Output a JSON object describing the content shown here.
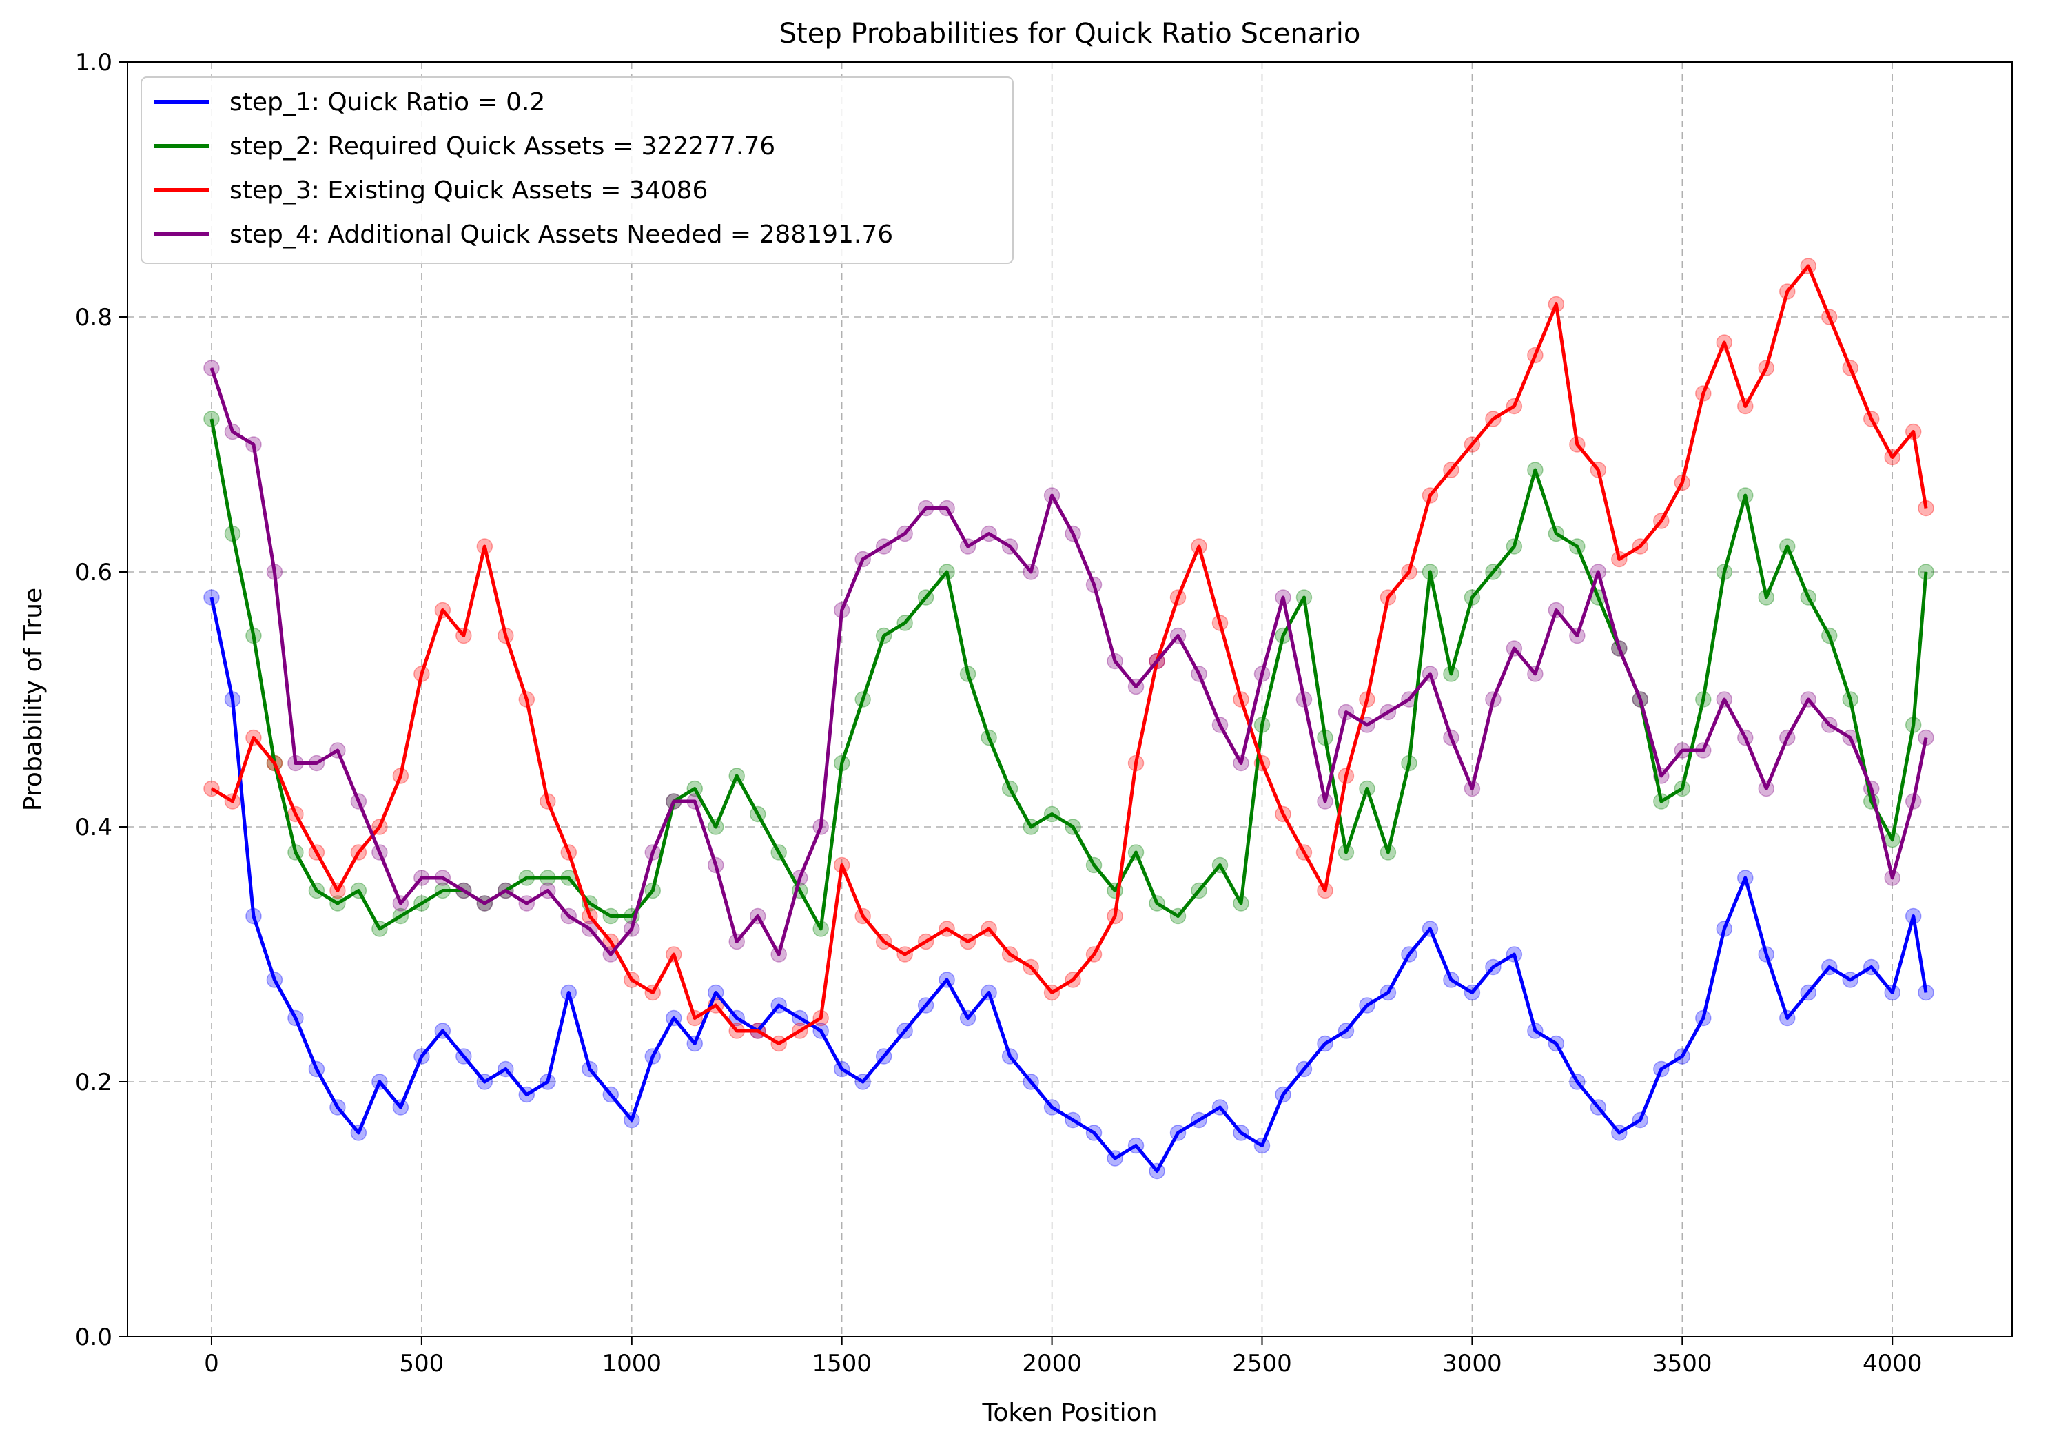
{
  "chart_data": {
    "type": "line",
    "title": "Step Probabilities for Quick Ratio Scenario",
    "xlabel": "Token Position",
    "ylabel": "Probability of True",
    "xlim": [
      -200,
      4285
    ],
    "ylim": [
      0.0,
      1.0
    ],
    "xticks": [
      0,
      500,
      1000,
      1500,
      2000,
      2500,
      3000,
      3500,
      4000
    ],
    "yticks": [
      0.0,
      0.2,
      0.4,
      0.6,
      0.8,
      1.0
    ],
    "xtick_labels": [
      "0",
      "500",
      "1000",
      "1500",
      "2000",
      "2500",
      "3000",
      "3500",
      "4000"
    ],
    "ytick_labels": [
      "0.0",
      "0.2",
      "0.4",
      "0.6",
      "0.8",
      "1.0"
    ],
    "grid": true,
    "legend_position": "upper-left",
    "series": [
      {
        "name": "step_1: Quick Ratio = 0.2",
        "color": "#0000ff",
        "x": [
          0,
          50,
          100,
          150,
          200,
          250,
          300,
          350,
          400,
          450,
          500,
          550,
          600,
          650,
          700,
          750,
          800,
          850,
          900,
          950,
          1000,
          1050,
          1100,
          1150,
          1200,
          1250,
          1300,
          1350,
          1400,
          1450,
          1500,
          1550,
          1600,
          1650,
          1700,
          1750,
          1800,
          1850,
          1900,
          1950,
          2000,
          2050,
          2100,
          2150,
          2200,
          2250,
          2300,
          2350,
          2400,
          2450,
          2500,
          2550,
          2600,
          2650,
          2700,
          2750,
          2800,
          2850,
          2900,
          2950,
          3000,
          3050,
          3100,
          3150,
          3200,
          3250,
          3300,
          3350,
          3400,
          3450,
          3500,
          3550,
          3600,
          3650,
          3700,
          3750,
          3800,
          3850,
          3900,
          3950,
          4000,
          4050,
          4080
        ],
        "y": [
          0.58,
          0.5,
          0.33,
          0.28,
          0.25,
          0.21,
          0.18,
          0.16,
          0.2,
          0.18,
          0.22,
          0.24,
          0.22,
          0.2,
          0.21,
          0.19,
          0.2,
          0.27,
          0.21,
          0.19,
          0.17,
          0.22,
          0.25,
          0.23,
          0.27,
          0.25,
          0.24,
          0.26,
          0.25,
          0.24,
          0.21,
          0.2,
          0.22,
          0.24,
          0.26,
          0.28,
          0.25,
          0.27,
          0.22,
          0.2,
          0.18,
          0.17,
          0.16,
          0.14,
          0.15,
          0.13,
          0.16,
          0.17,
          0.18,
          0.16,
          0.15,
          0.19,
          0.21,
          0.23,
          0.24,
          0.26,
          0.27,
          0.3,
          0.32,
          0.28,
          0.27,
          0.29,
          0.3,
          0.24,
          0.23,
          0.2,
          0.18,
          0.16,
          0.17,
          0.21,
          0.22,
          0.25,
          0.32,
          0.36,
          0.3,
          0.25,
          0.27,
          0.29,
          0.28,
          0.29,
          0.27,
          0.33,
          0.27
        ]
      },
      {
        "name": "step_2: Required Quick Assets = 322277.76",
        "color": "#008000",
        "x": [
          0,
          50,
          100,
          150,
          200,
          250,
          300,
          350,
          400,
          450,
          500,
          550,
          600,
          650,
          700,
          750,
          800,
          850,
          900,
          950,
          1000,
          1050,
          1100,
          1150,
          1200,
          1250,
          1300,
          1350,
          1400,
          1450,
          1500,
          1550,
          1600,
          1650,
          1700,
          1750,
          1800,
          1850,
          1900,
          1950,
          2000,
          2050,
          2100,
          2150,
          2200,
          2250,
          2300,
          2350,
          2400,
          2450,
          2500,
          2550,
          2600,
          2650,
          2700,
          2750,
          2800,
          2850,
          2900,
          2950,
          3000,
          3050,
          3100,
          3150,
          3200,
          3250,
          3300,
          3350,
          3400,
          3450,
          3500,
          3550,
          3600,
          3650,
          3700,
          3750,
          3800,
          3850,
          3900,
          3950,
          4000,
          4050,
          4080
        ],
        "y": [
          0.72,
          0.63,
          0.55,
          0.45,
          0.38,
          0.35,
          0.34,
          0.35,
          0.32,
          0.33,
          0.34,
          0.35,
          0.35,
          0.34,
          0.35,
          0.36,
          0.36,
          0.36,
          0.34,
          0.33,
          0.33,
          0.35,
          0.42,
          0.43,
          0.4,
          0.44,
          0.41,
          0.38,
          0.35,
          0.32,
          0.45,
          0.5,
          0.55,
          0.56,
          0.58,
          0.6,
          0.52,
          0.47,
          0.43,
          0.4,
          0.41,
          0.4,
          0.37,
          0.35,
          0.38,
          0.34,
          0.33,
          0.35,
          0.37,
          0.34,
          0.48,
          0.55,
          0.58,
          0.47,
          0.38,
          0.43,
          0.38,
          0.45,
          0.6,
          0.52,
          0.58,
          0.6,
          0.62,
          0.68,
          0.63,
          0.62,
          0.58,
          0.54,
          0.5,
          0.42,
          0.43,
          0.5,
          0.6,
          0.66,
          0.58,
          0.62,
          0.58,
          0.55,
          0.5,
          0.42,
          0.39,
          0.48,
          0.6
        ]
      },
      {
        "name": "step_3: Existing Quick Assets = 34086",
        "color": "#ff0000",
        "x": [
          0,
          50,
          100,
          150,
          200,
          250,
          300,
          350,
          400,
          450,
          500,
          550,
          600,
          650,
          700,
          750,
          800,
          850,
          900,
          950,
          1000,
          1050,
          1100,
          1150,
          1200,
          1250,
          1300,
          1350,
          1400,
          1450,
          1500,
          1550,
          1600,
          1650,
          1700,
          1750,
          1800,
          1850,
          1900,
          1950,
          2000,
          2050,
          2100,
          2150,
          2200,
          2250,
          2300,
          2350,
          2400,
          2450,
          2500,
          2550,
          2600,
          2650,
          2700,
          2750,
          2800,
          2850,
          2900,
          2950,
          3000,
          3050,
          3100,
          3150,
          3200,
          3250,
          3300,
          3350,
          3400,
          3450,
          3500,
          3550,
          3600,
          3650,
          3700,
          3750,
          3800,
          3850,
          3900,
          3950,
          4000,
          4050,
          4080
        ],
        "y": [
          0.43,
          0.42,
          0.47,
          0.45,
          0.41,
          0.38,
          0.35,
          0.38,
          0.4,
          0.44,
          0.52,
          0.57,
          0.55,
          0.62,
          0.55,
          0.5,
          0.42,
          0.38,
          0.33,
          0.31,
          0.28,
          0.27,
          0.3,
          0.25,
          0.26,
          0.24,
          0.24,
          0.23,
          0.24,
          0.25,
          0.37,
          0.33,
          0.31,
          0.3,
          0.31,
          0.32,
          0.31,
          0.32,
          0.3,
          0.29,
          0.27,
          0.28,
          0.3,
          0.33,
          0.45,
          0.53,
          0.58,
          0.62,
          0.56,
          0.5,
          0.45,
          0.41,
          0.38,
          0.35,
          0.44,
          0.5,
          0.58,
          0.6,
          0.66,
          0.68,
          0.7,
          0.72,
          0.73,
          0.77,
          0.81,
          0.7,
          0.68,
          0.61,
          0.62,
          0.64,
          0.67,
          0.74,
          0.78,
          0.73,
          0.76,
          0.82,
          0.84,
          0.8,
          0.76,
          0.72,
          0.69,
          0.71,
          0.65
        ]
      },
      {
        "name": "step_4: Additional Quick Assets Needed = 288191.76",
        "color": "#800080",
        "x": [
          0,
          50,
          100,
          150,
          200,
          250,
          300,
          350,
          400,
          450,
          500,
          550,
          600,
          650,
          700,
          750,
          800,
          850,
          900,
          950,
          1000,
          1050,
          1100,
          1150,
          1200,
          1250,
          1300,
          1350,
          1400,
          1450,
          1500,
          1550,
          1600,
          1650,
          1700,
          1750,
          1800,
          1850,
          1900,
          1950,
          2000,
          2050,
          2100,
          2150,
          2200,
          2250,
          2300,
          2350,
          2400,
          2450,
          2500,
          2550,
          2600,
          2650,
          2700,
          2750,
          2800,
          2850,
          2900,
          2950,
          3000,
          3050,
          3100,
          3150,
          3200,
          3250,
          3300,
          3350,
          3400,
          3450,
          3500,
          3550,
          3600,
          3650,
          3700,
          3750,
          3800,
          3850,
          3900,
          3950,
          4000,
          4050,
          4080
        ],
        "y": [
          0.76,
          0.71,
          0.7,
          0.6,
          0.45,
          0.45,
          0.46,
          0.42,
          0.38,
          0.34,
          0.36,
          0.36,
          0.35,
          0.34,
          0.35,
          0.34,
          0.35,
          0.33,
          0.32,
          0.3,
          0.32,
          0.38,
          0.42,
          0.42,
          0.37,
          0.31,
          0.33,
          0.3,
          0.36,
          0.4,
          0.57,
          0.61,
          0.62,
          0.63,
          0.65,
          0.65,
          0.62,
          0.63,
          0.62,
          0.6,
          0.66,
          0.63,
          0.59,
          0.53,
          0.51,
          0.53,
          0.55,
          0.52,
          0.48,
          0.45,
          0.52,
          0.58,
          0.5,
          0.42,
          0.49,
          0.48,
          0.49,
          0.5,
          0.52,
          0.47,
          0.43,
          0.5,
          0.54,
          0.52,
          0.57,
          0.55,
          0.6,
          0.54,
          0.5,
          0.44,
          0.46,
          0.46,
          0.5,
          0.47,
          0.43,
          0.47,
          0.5,
          0.48,
          0.47,
          0.43,
          0.36,
          0.42,
          0.47
        ]
      }
    ]
  }
}
